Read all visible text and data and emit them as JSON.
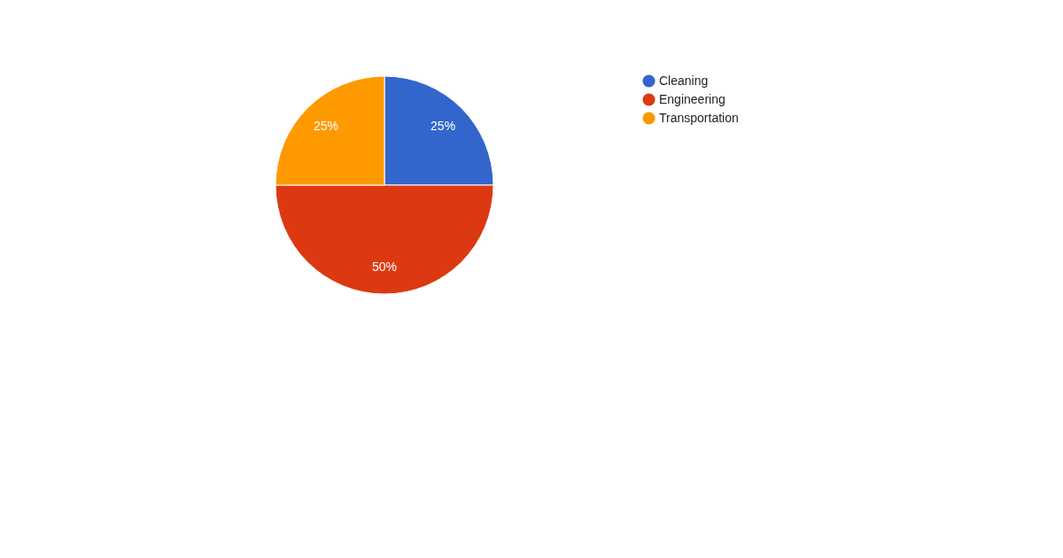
{
  "chart_data": {
    "type": "pie",
    "categories": [
      "Cleaning",
      "Engineering",
      "Transportation"
    ],
    "values": [
      25,
      50,
      25
    ],
    "colors": [
      "#3366cc",
      "#dc3912",
      "#ff9900"
    ],
    "value_labels": [
      "25%",
      "50%",
      "25%"
    ],
    "legend": "right"
  }
}
